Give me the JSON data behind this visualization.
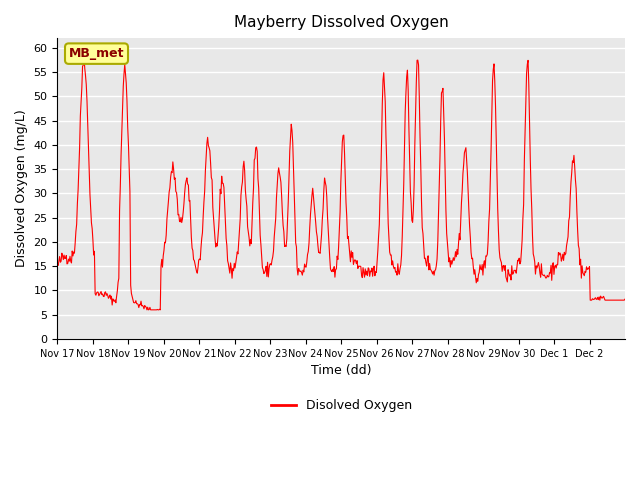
{
  "title": "Mayberry Dissolved Oxygen",
  "xlabel": "Time (dd)",
  "ylabel": "Dissolved Oxygen (mg/L)",
  "legend_label": "Disolved Oxygen",
  "annotation_text": "MB_met",
  "line_color": "#ff0000",
  "plot_bg_color": "#e8e8e8",
  "ylim": [
    0,
    62
  ],
  "yticks": [
    0,
    5,
    10,
    15,
    20,
    25,
    30,
    35,
    40,
    45,
    50,
    55,
    60
  ],
  "xtick_positions": [
    0,
    1,
    2,
    3,
    4,
    5,
    6,
    7,
    8,
    9,
    10,
    11,
    12,
    13,
    14,
    15
  ],
  "xtick_labels": [
    "Nov 17",
    "Nov 18",
    "Nov 19",
    "Nov 20",
    "Nov 21",
    "Nov 22",
    "Nov 23",
    "Nov 24",
    "Nov 25",
    "Nov 26",
    "Nov 27",
    "Nov 28",
    "Nov 29",
    "Nov 30",
    "Dec 1",
    "Dec 2"
  ],
  "annotation_box_facecolor": "#ffff99",
  "annotation_box_edgecolor": "#aaaa00",
  "n_days": 16
}
